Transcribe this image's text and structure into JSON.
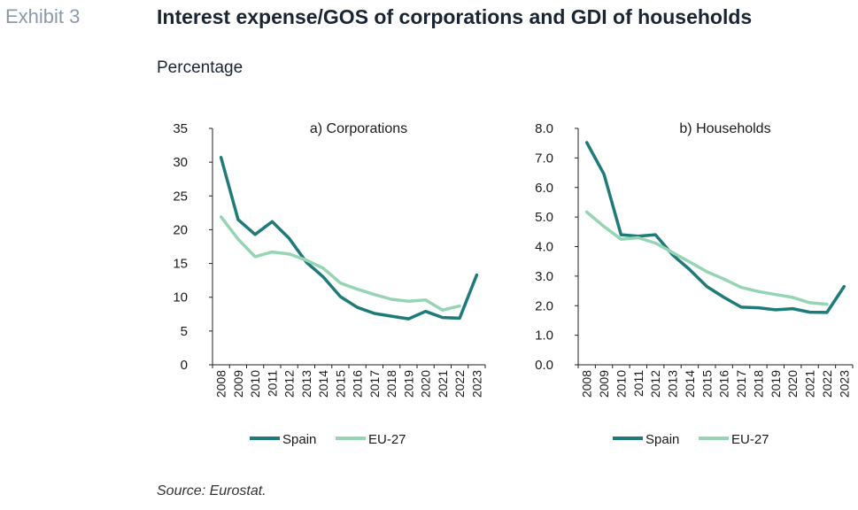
{
  "exhibit_label": "Exhibit 3",
  "title": "Interest expense/GOS of corporations and GDI of households",
  "subtitle": "Percentage",
  "source": "Source: Eurostat.",
  "colors": {
    "spain": "#1f7a7a",
    "eu27": "#96d5b3"
  },
  "chart_data": [
    {
      "type": "line",
      "title": "a) Corporations",
      "x": [
        "2008",
        "2009",
        "2010",
        "2011",
        "2012",
        "2013",
        "2014",
        "2015",
        "2016",
        "2017",
        "2018",
        "2019",
        "2020",
        "2021",
        "2022",
        "2023"
      ],
      "ylim": [
        0,
        35
      ],
      "yticks": [
        "0",
        "5",
        "10",
        "15",
        "20",
        "25",
        "30",
        "35"
      ],
      "grid": false,
      "legend": "bottom",
      "series": [
        {
          "name": "Spain",
          "values": [
            30.7,
            21.5,
            19.3,
            21.2,
            18.7,
            15.2,
            13.0,
            10.1,
            8.5,
            7.6,
            7.2,
            6.8,
            7.9,
            7.0,
            6.9,
            13.3
          ]
        },
        {
          "name": "EU-27",
          "values": [
            21.9,
            18.6,
            16.0,
            16.7,
            16.4,
            15.5,
            14.3,
            12.1,
            11.2,
            10.4,
            9.7,
            9.4,
            9.6,
            8.1,
            8.7,
            null
          ]
        }
      ]
    },
    {
      "type": "line",
      "title": "b) Households",
      "x": [
        "2008",
        "2009",
        "2010",
        "2011",
        "2012",
        "2013",
        "2014",
        "2015",
        "2016",
        "2017",
        "2018",
        "2019",
        "2020",
        "2021",
        "2022",
        "2023"
      ],
      "ylim": [
        0,
        8
      ],
      "yticks": [
        "0.0",
        "1.0",
        "2.0",
        "3.0",
        "4.0",
        "5.0",
        "6.0",
        "7.0",
        "8.0"
      ],
      "grid": false,
      "legend": "bottom",
      "series": [
        {
          "name": "Spain",
          "values": [
            7.52,
            6.45,
            4.4,
            4.35,
            4.4,
            3.72,
            3.22,
            2.65,
            2.28,
            1.95,
            1.93,
            1.86,
            1.9,
            1.78,
            1.77,
            2.65
          ]
        },
        {
          "name": "EU-27",
          "values": [
            5.17,
            4.68,
            4.25,
            4.3,
            4.12,
            3.8,
            3.48,
            3.15,
            2.9,
            2.62,
            2.48,
            2.38,
            2.28,
            2.1,
            2.05,
            null
          ]
        }
      ]
    }
  ]
}
